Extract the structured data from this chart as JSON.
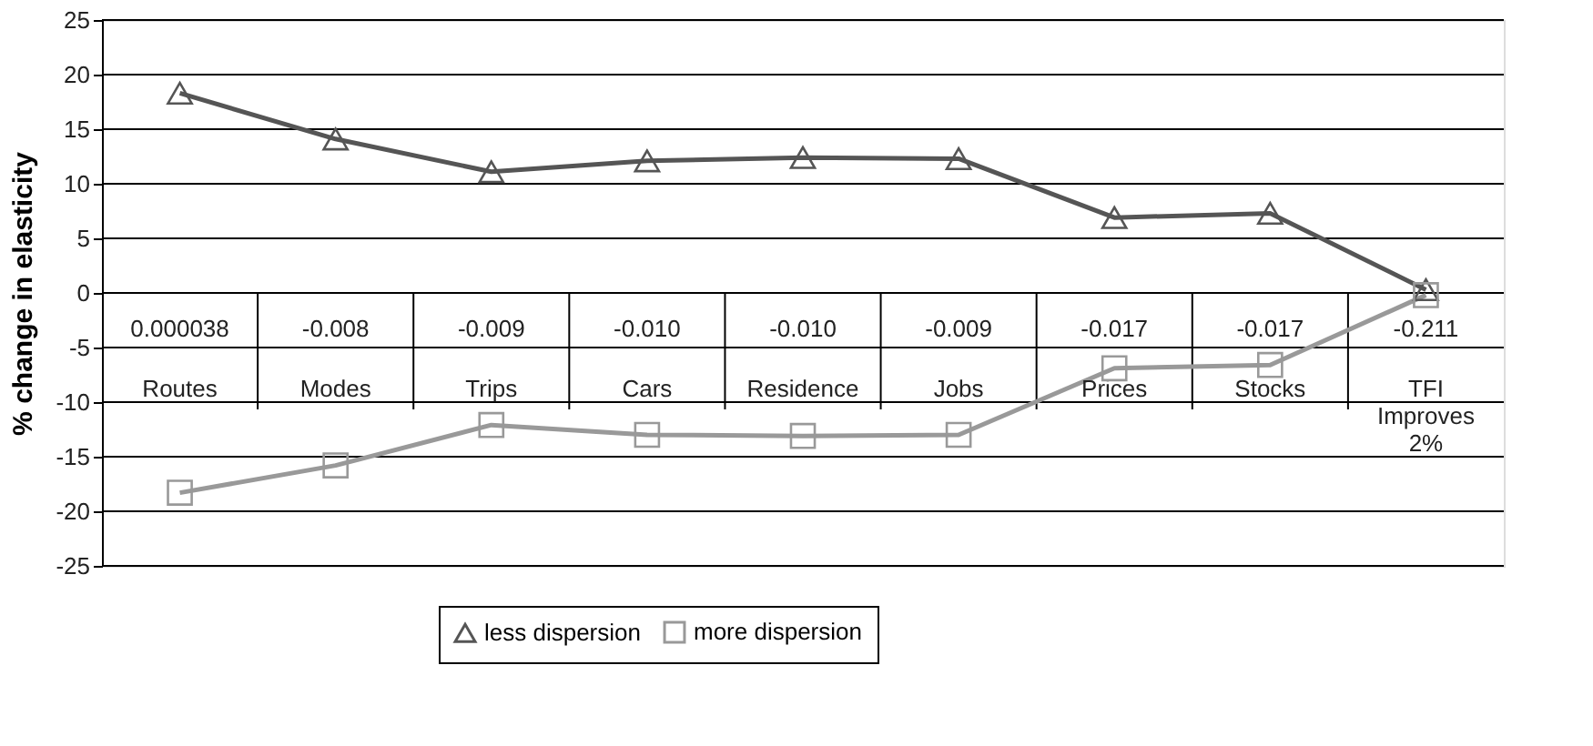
{
  "chart_data": {
    "type": "line",
    "ylabel": "% change in elasticity",
    "categories": [
      "Routes",
      "Modes",
      "Trips",
      "Cars",
      "Residence",
      "Jobs",
      "Prices",
      "Stocks",
      "TFI Improves 2%"
    ],
    "annotations": [
      "0.000038",
      "-0.008",
      "-0.009",
      "-0.010",
      "-0.010",
      "-0.009",
      "-0.017",
      "-0.017",
      "-0.211"
    ],
    "series": [
      {
        "name": "less dispersion",
        "color": "#555555",
        "marker": "triangle",
        "values": [
          18.3,
          14.1,
          11.1,
          12.1,
          12.4,
          12.3,
          6.9,
          7.3,
          0.3
        ]
      },
      {
        "name": "more dispersion",
        "color": "#999999",
        "marker": "square",
        "values": [
          -18.3,
          -15.8,
          -12.1,
          -13.0,
          -13.1,
          -13.0,
          -6.9,
          -6.6,
          -0.2
        ]
      }
    ],
    "ylim": [
      -25,
      25
    ],
    "yticks": [
      -25,
      -20,
      -15,
      -10,
      -5,
      0,
      5,
      10,
      15,
      20,
      25
    ],
    "grid": "y",
    "legend": "bottom",
    "line_style": "solid"
  }
}
